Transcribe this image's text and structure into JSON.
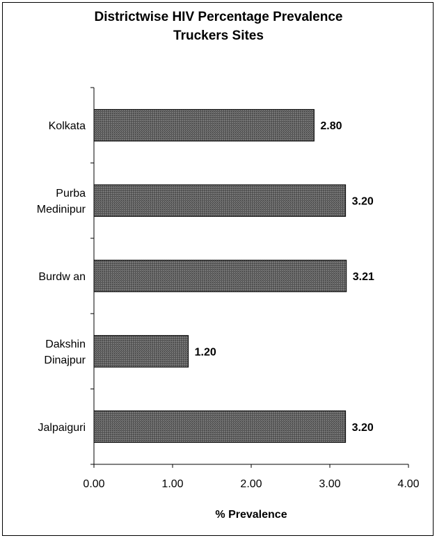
{
  "chart_data": {
    "type": "bar",
    "orientation": "horizontal",
    "title": [
      "Districtwise HIV Percentage Prevalence",
      "Truckers Sites"
    ],
    "xlabel": "% Prevalence",
    "ylabel": "",
    "xlim": [
      0,
      4
    ],
    "xticks": [
      "0.00",
      "1.00",
      "2.00",
      "3.00",
      "4.00"
    ],
    "categories": [
      [
        "Kolkata"
      ],
      [
        "Purba",
        "Medinipur"
      ],
      [
        "Burdw an"
      ],
      [
        "Dakshin",
        "Dinajpur"
      ],
      [
        "Jalpaiguri"
      ]
    ],
    "values": [
      2.8,
      3.2,
      3.21,
      1.2,
      3.2
    ],
    "value_labels": [
      "2.80",
      "3.20",
      "3.21",
      "1.20",
      "3.20"
    ],
    "grid": false,
    "legend": "none",
    "bar_color": "#555555"
  }
}
